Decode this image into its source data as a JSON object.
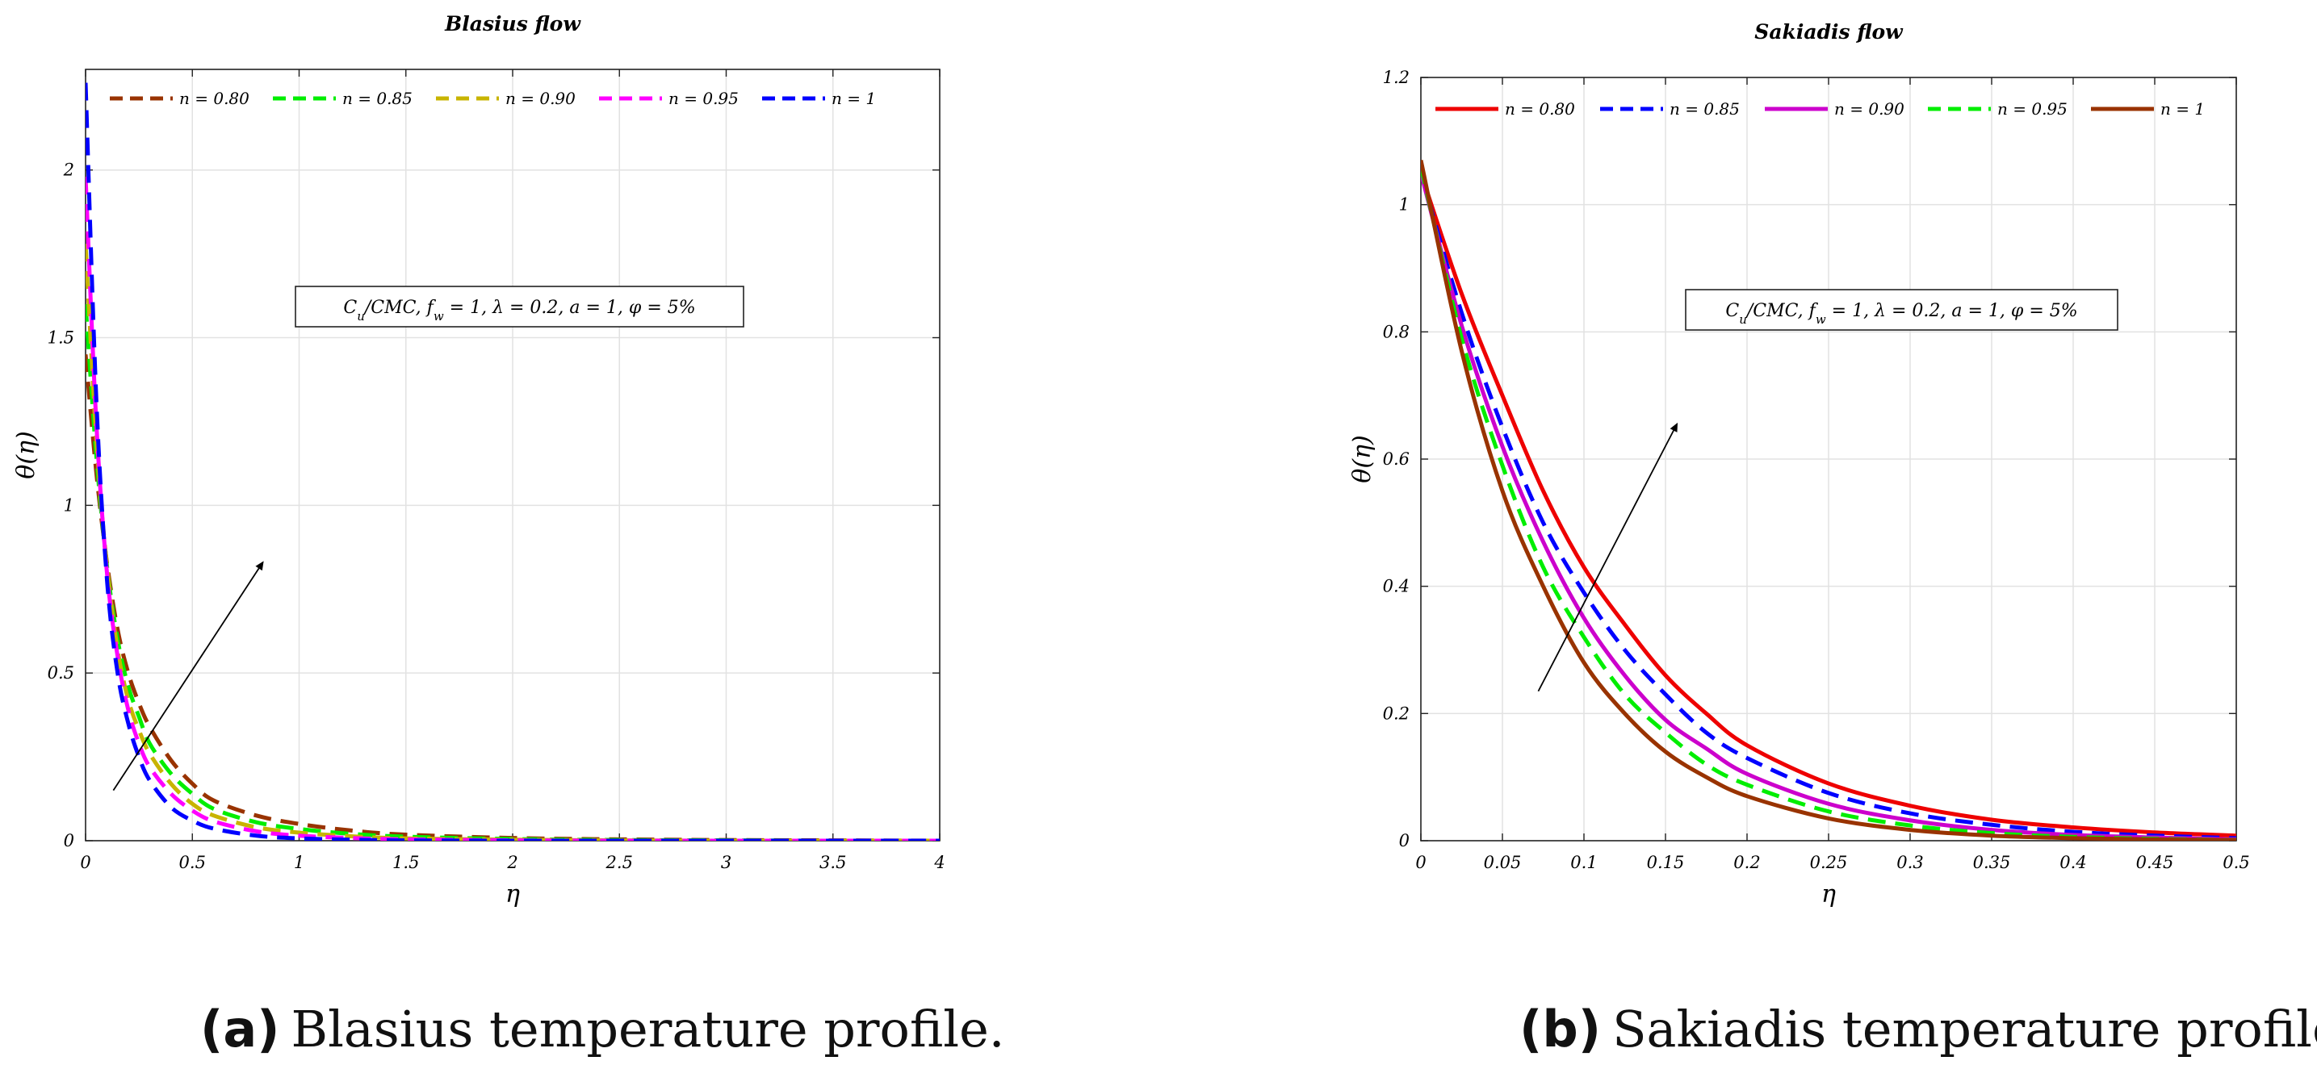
{
  "chart_data": [
    {
      "type": "line",
      "title": "Blasius flow",
      "xlabel": "η",
      "ylabel": "θ(η)",
      "xlim": [
        0,
        4
      ],
      "ylim": [
        0,
        2.3
      ],
      "xticks": [
        "0",
        "0.5",
        "1",
        "1.5",
        "2",
        "2.5",
        "3",
        "3.5",
        "4"
      ],
      "yticks": [
        "0",
        "0.5",
        "1",
        "1.5",
        "2"
      ],
      "grid": true,
      "legend_position": "top",
      "annotation": "C_u/CMC, f_w = 1, λ = 0.2, a = 1, φ = 5%",
      "caption_label": "(a)",
      "caption_text": "Blasius temperature profile.",
      "x": [
        0,
        0.05,
        0.1,
        0.15,
        0.2,
        0.25,
        0.3,
        0.4,
        0.5,
        0.6,
        0.8,
        1.0,
        1.25,
        1.5,
        2.0,
        2.5,
        3.0,
        3.5,
        4.0
      ],
      "series": [
        {
          "name": "n = 0.80",
          "color": "#993300",
          "dash": "dashed",
          "values": [
            1.45,
            1.1,
            0.83,
            0.63,
            0.5,
            0.41,
            0.34,
            0.24,
            0.17,
            0.12,
            0.075,
            0.05,
            0.03,
            0.018,
            0.008,
            0.004,
            0.002,
            0.001,
            0.0
          ]
        },
        {
          "name": "n = 0.85",
          "color": "#00ee00",
          "dash": "dashed",
          "values": [
            1.6,
            1.15,
            0.82,
            0.6,
            0.46,
            0.37,
            0.29,
            0.2,
            0.14,
            0.095,
            0.055,
            0.035,
            0.02,
            0.012,
            0.005,
            0.002,
            0.001,
            0.0,
            0.0
          ]
        },
        {
          "name": "n = 0.90",
          "color": "#c8b400",
          "dash": "dashed",
          "values": [
            1.78,
            1.2,
            0.82,
            0.57,
            0.42,
            0.33,
            0.26,
            0.17,
            0.11,
            0.075,
            0.04,
            0.024,
            0.013,
            0.007,
            0.003,
            0.001,
            0.0,
            0.0,
            0.0
          ]
        },
        {
          "name": "n = 0.95",
          "color": "#ff00ff",
          "dash": "dashed",
          "values": [
            1.98,
            1.25,
            0.8,
            0.55,
            0.39,
            0.29,
            0.22,
            0.14,
            0.09,
            0.058,
            0.028,
            0.015,
            0.008,
            0.004,
            0.001,
            0.0,
            0.0,
            0.0,
            0.0
          ]
        },
        {
          "name": "n = 1",
          "color": "#0000ff",
          "dash": "dashed",
          "values": [
            2.26,
            1.32,
            0.78,
            0.5,
            0.35,
            0.25,
            0.18,
            0.1,
            0.06,
            0.036,
            0.015,
            0.007,
            0.003,
            0.001,
            0.0,
            0.0,
            0.0,
            0.0,
            0.0
          ]
        }
      ],
      "arrow": {
        "from": [
          0.13,
          0.15
        ],
        "to": [
          0.83,
          0.83
        ]
      }
    },
    {
      "type": "line",
      "title": "Sakiadis flow",
      "xlabel": "η",
      "ylabel": "θ(η)",
      "xlim": [
        0,
        0.5
      ],
      "ylim": [
        0,
        1.2
      ],
      "xticks": [
        "0",
        "0.05",
        "0.1",
        "0.15",
        "0.2",
        "0.25",
        "0.3",
        "0.35",
        "0.4",
        "0.45",
        "0.5"
      ],
      "yticks": [
        "0",
        "0.2",
        "0.4",
        "0.6",
        "0.8",
        "1",
        "1.2"
      ],
      "grid": true,
      "legend_position": "top",
      "annotation": "C_u/CMC, f_w = 1, λ = 0.2, a = 1, φ = 5%",
      "caption_label": "(b)",
      "caption_text": "Sakiadis temperature profile.",
      "x": [
        0,
        0.025,
        0.05,
        0.075,
        0.1,
        0.125,
        0.15,
        0.175,
        0.2,
        0.25,
        0.3,
        0.35,
        0.4,
        0.45,
        0.5
      ],
      "series": [
        {
          "name": "n = 0.80",
          "color": "#ee0000",
          "dash": "solid",
          "values": [
            1.05,
            0.86,
            0.7,
            0.55,
            0.43,
            0.34,
            0.26,
            0.2,
            0.15,
            0.09,
            0.055,
            0.033,
            0.021,
            0.013,
            0.008
          ]
        },
        {
          "name": "n = 0.85",
          "color": "#0000ff",
          "dash": "dashed",
          "values": [
            1.05,
            0.83,
            0.65,
            0.5,
            0.39,
            0.3,
            0.23,
            0.17,
            0.13,
            0.075,
            0.043,
            0.025,
            0.014,
            0.008,
            0.004
          ]
        },
        {
          "name": "n = 0.90",
          "color": "#cc00cc",
          "dash": "solid",
          "values": [
            1.05,
            0.81,
            0.62,
            0.47,
            0.35,
            0.26,
            0.19,
            0.145,
            0.105,
            0.058,
            0.032,
            0.017,
            0.009,
            0.005,
            0.002
          ]
        },
        {
          "name": "n = 0.95",
          "color": "#00ee00",
          "dash": "dashed",
          "values": [
            1.06,
            0.79,
            0.59,
            0.43,
            0.32,
            0.23,
            0.17,
            0.12,
            0.088,
            0.046,
            0.024,
            0.012,
            0.006,
            0.003,
            0.001
          ]
        },
        {
          "name": "n = 1",
          "color": "#993300",
          "dash": "solid",
          "values": [
            1.07,
            0.77,
            0.55,
            0.4,
            0.28,
            0.2,
            0.14,
            0.1,
            0.07,
            0.035,
            0.017,
            0.008,
            0.004,
            0.002,
            0.001
          ]
        }
      ],
      "arrow": {
        "from": [
          0.072,
          0.235
        ],
        "to": [
          0.157,
          0.655
        ]
      }
    }
  ]
}
